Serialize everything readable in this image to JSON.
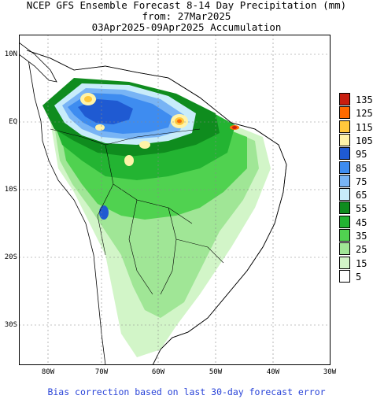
{
  "title": {
    "line1": "NCEP GFS Ensemble Forecast 8-14 Day Precipitation (mm)",
    "line2": "from: 27Mar2025",
    "line3": "03Apr2025-09Apr2025 Accumulation"
  },
  "axes": {
    "lat_labels": [
      "10N",
      "EQ",
      "10S",
      "20S",
      "30S"
    ],
    "lon_labels": [
      "80W",
      "70W",
      "60W",
      "50W",
      "40W",
      "30W"
    ]
  },
  "legend": [
    {
      "label": "135",
      "color": "#c81e0f"
    },
    {
      "label": "125",
      "color": "#ff6a00"
    },
    {
      "label": "115",
      "color": "#ffc83c"
    },
    {
      "label": "105",
      "color": "#fff3a8"
    },
    {
      "label": "95",
      "color": "#1f5ad2"
    },
    {
      "label": "85",
      "color": "#3e8cf0"
    },
    {
      "label": "75",
      "color": "#78b4f5"
    },
    {
      "label": "65",
      "color": "#c8ecfa"
    },
    {
      "label": "55",
      "color": "#0f8c1e"
    },
    {
      "label": "45",
      "color": "#23b432"
    },
    {
      "label": "35",
      "color": "#50d250"
    },
    {
      "label": "25",
      "color": "#a0e696"
    },
    {
      "label": "15",
      "color": "#d2f5c8"
    },
    {
      "label": "5",
      "color": "#ffffff"
    }
  ],
  "footnote": "Bias correction based on last 30-day forecast error"
}
